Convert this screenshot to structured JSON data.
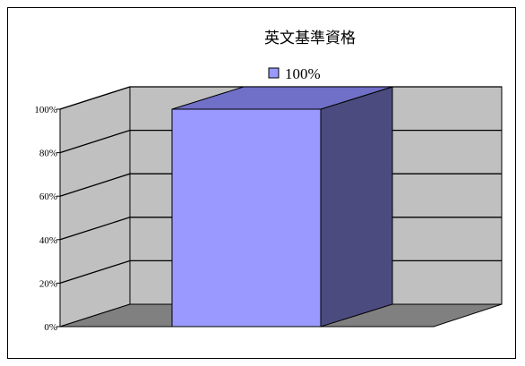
{
  "chart_data": {
    "type": "bar",
    "title": "英文基準資格",
    "categories": [
      ""
    ],
    "series": [
      {
        "name": "100%",
        "values": [
          100
        ]
      }
    ],
    "ylim": [
      0,
      100
    ],
    "yticks": [
      "0%",
      "20%",
      "40%",
      "60%",
      "80%",
      "100%"
    ],
    "grid": true,
    "legend_position": "top-center",
    "three_d": true,
    "colors": {
      "bar_front": "#9999ff",
      "bar_side": "#4b4b7f",
      "bar_top": "#7070c8",
      "back_wall": "#c0c0c0",
      "side_wall": "#c0c0c0",
      "floor": "#808080"
    }
  }
}
